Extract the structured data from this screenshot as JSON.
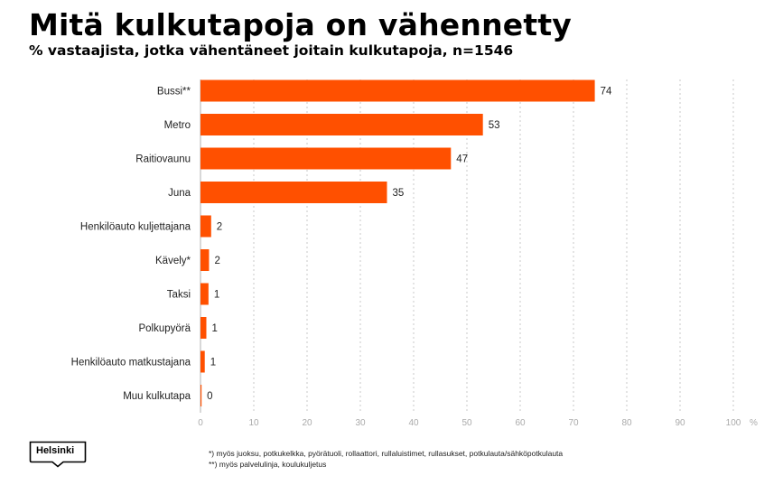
{
  "chart_data": {
    "type": "bar",
    "orientation": "horizontal",
    "title": "Mitä kulkutapoja on vähennetty",
    "subtitle": "% vastaajista, jotka vähentäneet joitain kulkutapoja, n=1546",
    "categories": [
      "Bussi**",
      "Metro",
      "Raitiovaunu",
      "Juna",
      "Henkilöauto kuljettajana",
      "Kävely*",
      "Taksi",
      "Polkupyörä",
      "Henkilöauto matkustajana",
      "Muu kulkutapa"
    ],
    "values": [
      74,
      53,
      47,
      35,
      2,
      2,
      1,
      1,
      1,
      0
    ],
    "data_labels": [
      "74",
      "53",
      "47",
      "35",
      "2",
      "2",
      "1",
      "1",
      "1",
      "0"
    ],
    "plot_values": [
      74,
      53,
      47,
      35,
      2,
      1.6,
      1.5,
      1.1,
      0.8,
      0.2
    ],
    "x_ticks": [
      "0",
      "10",
      "20",
      "30",
      "40",
      "50",
      "60",
      "70",
      "80",
      "90",
      "100"
    ],
    "x_unit": "%",
    "xlim": [
      0,
      100
    ],
    "grid": "vertical dashed",
    "bar_color": "#ff5000"
  },
  "logo": {
    "text": "Helsinki"
  },
  "footnotes": [
    "*) myös juoksu, potkukelkka, pyörätuoli, rollaattori, rullaluistimet, rullasukset, potkulauta/sähköpotkulauta",
    "**) myös palvelulinja, koulukuljetus"
  ]
}
